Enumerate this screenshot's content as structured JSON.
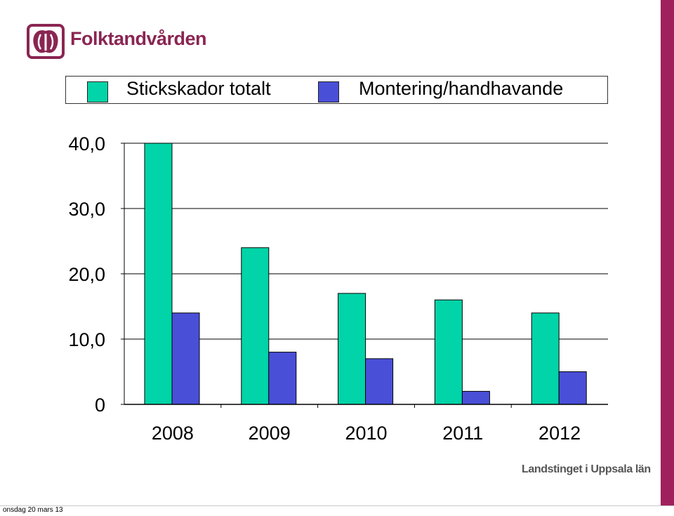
{
  "brand": {
    "name": "Folktandvården",
    "organization": "Landstinget i Uppsala län",
    "accent_color": "#8a2552"
  },
  "footer": {
    "date": "onsdag 20 mars 13"
  },
  "chart_data": {
    "type": "bar",
    "categories": [
      "2008",
      "2009",
      "2010",
      "2011",
      "2012"
    ],
    "series": [
      {
        "name": "Stickskador totalt",
        "color": "#00d4a8",
        "values": [
          40,
          24,
          17,
          16,
          14
        ]
      },
      {
        "name": "Montering/handhavande",
        "color": "#4a4fd8",
        "values": [
          14,
          8,
          7,
          2,
          5
        ]
      }
    ],
    "ylim": [
      0,
      40
    ],
    "yticks": [
      "0",
      "10,0",
      "20,0",
      "30,0",
      "40,0"
    ],
    "grid": true,
    "legend_position": "top"
  }
}
